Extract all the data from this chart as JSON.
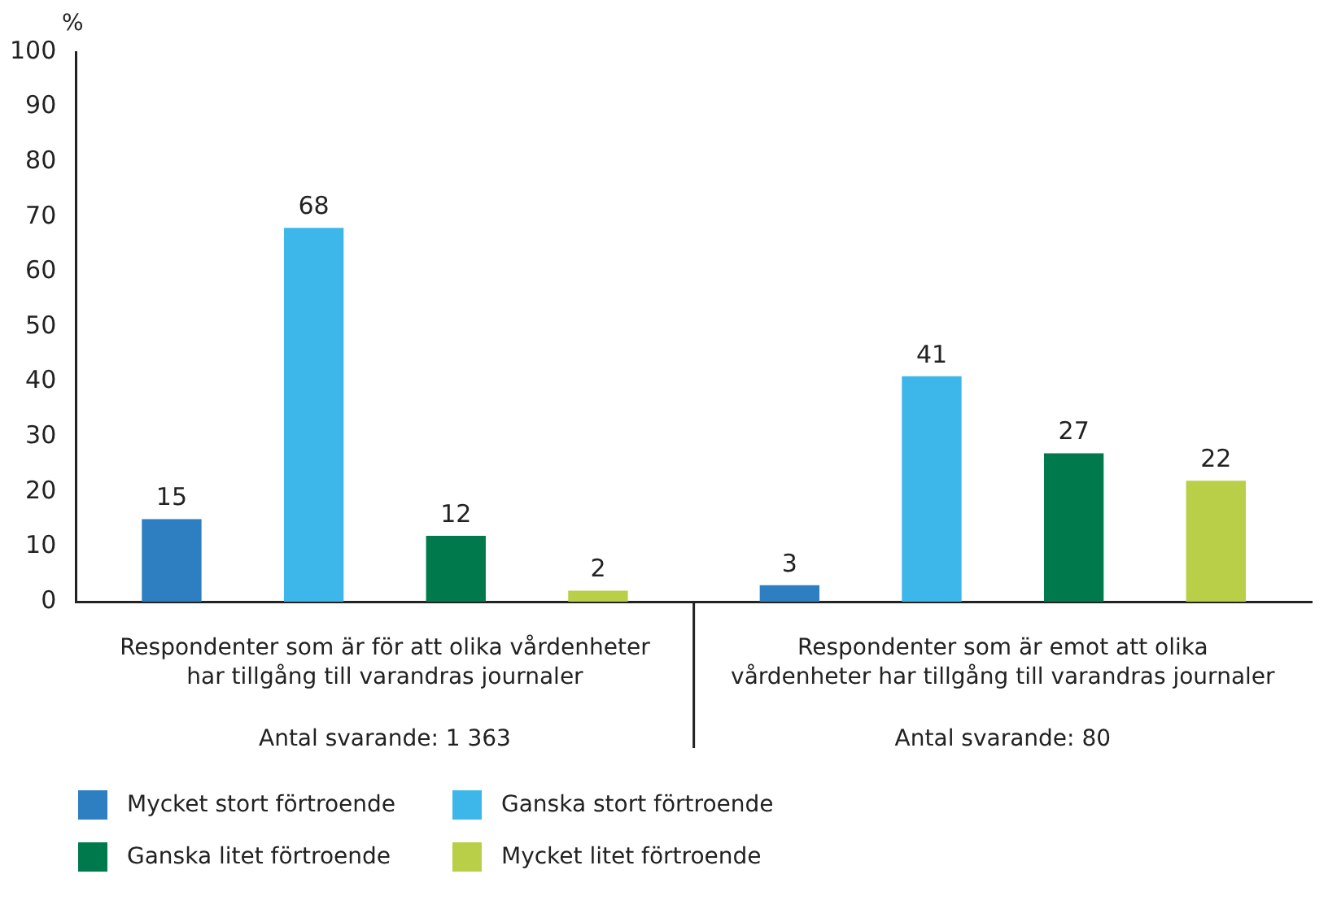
{
  "chart_data": {
    "type": "bar",
    "ylabel": "%",
    "categories": [
      "Respondenter som är för att olika vårdenheter har tillgång till varandras journaler",
      "Respondenter som är emot att olika vårdenheter har tillgång till varandras journaler"
    ],
    "series": [
      {
        "name": "Mycket stort förtroende",
        "color": "#2e7fc1",
        "values": [
          15,
          3
        ]
      },
      {
        "name": "Ganska stort förtroende",
        "color": "#3db7e9",
        "values": [
          68,
          41
        ]
      },
      {
        "name": "Ganska litet förtroende",
        "color": "#007a4d",
        "values": [
          12,
          27
        ]
      },
      {
        "name": "Mycket litet förtroende",
        "color": "#b8cf47",
        "values": [
          2,
          22
        ]
      }
    ],
    "ylim": [
      0,
      100
    ],
    "yticks": [
      0,
      10,
      20,
      30,
      40,
      50,
      60,
      70,
      80,
      90,
      100
    ],
    "grid": false,
    "legend": "bottom",
    "data_labels": true,
    "annotations": [
      "Antal svarande: 1 363",
      "Antal svarande: 80"
    ]
  }
}
